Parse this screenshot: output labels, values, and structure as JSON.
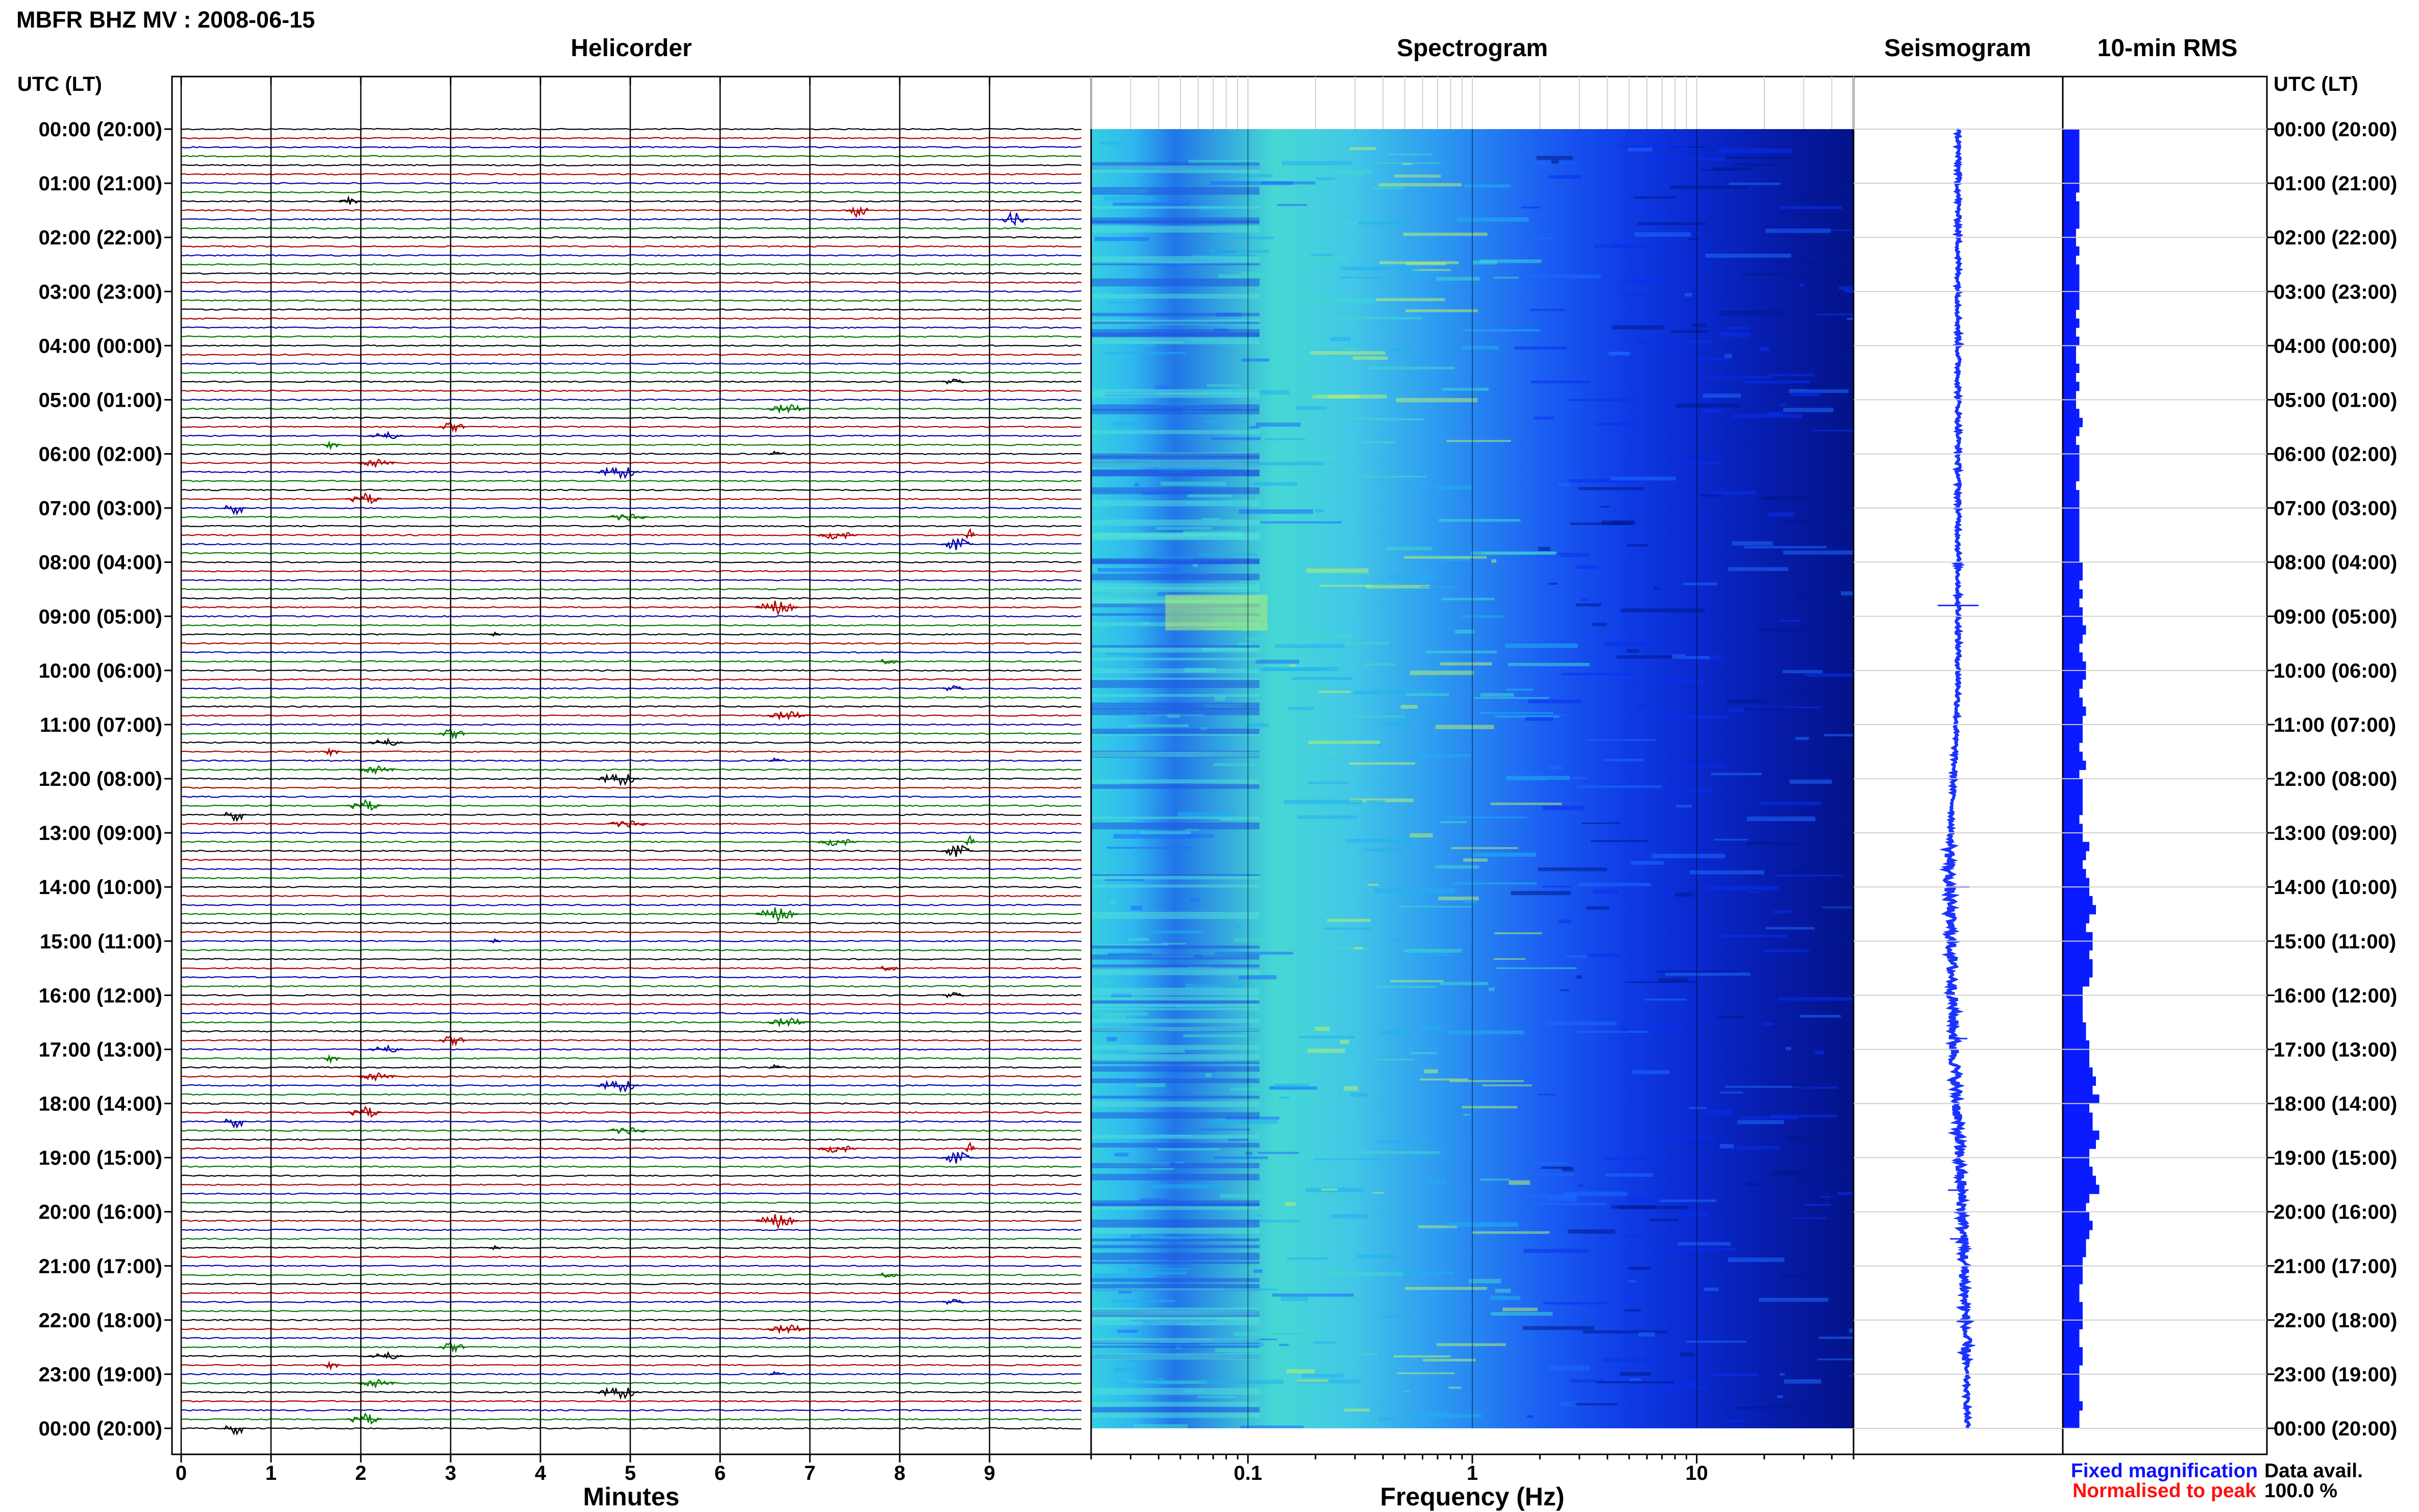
{
  "header": {
    "title": "MBFR BHZ MV : 2008-06-15"
  },
  "panels": {
    "helicorder": "Helicorder",
    "spectrogram": "Spectrogram",
    "seismogram": "Seismogram",
    "rms": "10-min RMS"
  },
  "time_axis": {
    "header_left": "UTC (LT)",
    "header_right": "UTC (LT)",
    "labels": [
      "00:00 (20:00)",
      "01:00 (21:00)",
      "02:00 (22:00)",
      "03:00 (23:00)",
      "04:00 (00:00)",
      "05:00 (01:00)",
      "06:00 (02:00)",
      "07:00 (03:00)",
      "08:00 (04:00)",
      "09:00 (05:00)",
      "10:00 (06:00)",
      "11:00 (07:00)",
      "12:00 (08:00)",
      "13:00 (09:00)",
      "14:00 (10:00)",
      "15:00 (11:00)",
      "16:00 (12:00)",
      "17:00 (13:00)",
      "18:00 (14:00)",
      "19:00 (15:00)",
      "20:00 (16:00)",
      "21:00 (17:00)",
      "22:00 (18:00)",
      "23:00 (19:00)",
      "00:00 (20:00)"
    ]
  },
  "helicorder_axis": {
    "xlabel": "Minutes",
    "ticks": [
      "0",
      "1",
      "2",
      "3",
      "4",
      "5",
      "6",
      "7",
      "8",
      "9"
    ]
  },
  "spectrogram_axis": {
    "xlabel": "Frequency (Hz)",
    "ticks": [
      "0.1",
      "1",
      "10"
    ],
    "scale": "log"
  },
  "legend": {
    "fixed": "Fixed magnification",
    "normalised": "Normalised to peak",
    "fixed_color": "#1010ff",
    "normalised_color": "#ff1010"
  },
  "data_avail": {
    "label": "Data avail.",
    "value": "100.0 %"
  },
  "colors": {
    "trace_cycle": [
      "#000000",
      "#b00000",
      "#0000b0",
      "#007a00"
    ],
    "seismogram": "#1a33ff",
    "rms": "#0a1cff",
    "spectrogram_scale": [
      "#001a8c",
      "#0a2ff0",
      "#1e6bff",
      "#1fb0f0",
      "#3fd8d0",
      "#b8f070"
    ]
  },
  "chart_data": {
    "type": "heatmap",
    "title": "MBFR BHZ MV : 2008-06-15",
    "helicorder": {
      "lines_per_hour": 6,
      "minutes_per_line": 10,
      "xlim": [
        0,
        10
      ]
    },
    "spectrogram": {
      "xlim_hz": [
        0.02,
        50
      ],
      "energy_peak_hz": [
        0.1,
        0.5
      ],
      "note_band_hz": [
        0.3,
        0.4
      ]
    },
    "seismogram": {
      "drift": [
        0,
        0,
        0,
        0,
        -0.5,
        -0.2,
        0.3,
        0.5
      ]
    },
    "rms_10min": [
      5,
      5,
      5,
      5,
      5,
      5,
      5,
      4,
      5,
      5,
      5,
      4,
      4,
      5,
      4,
      5,
      5,
      5,
      5,
      5,
      4,
      5,
      4,
      5,
      4,
      4,
      5,
      4,
      5,
      4,
      4,
      5,
      6,
      5,
      4,
      5,
      5,
      5,
      5,
      4,
      5,
      5,
      5,
      5,
      5,
      5,
      5,
      5,
      6,
      6,
      5,
      6,
      5,
      6,
      6,
      7,
      6,
      5,
      6,
      7,
      7,
      6,
      5,
      6,
      7,
      6,
      6,
      6,
      5,
      6,
      7,
      5,
      6,
      6,
      6,
      6,
      5,
      6,
      6,
      8,
      7,
      6,
      7,
      8,
      8,
      9,
      10,
      8,
      7,
      9,
      9,
      8,
      9,
      9,
      8,
      6,
      6,
      6,
      6,
      7,
      7,
      8,
      8,
      8,
      9,
      10,
      9,
      11,
      8,
      9,
      9,
      11,
      10,
      8,
      8,
      9,
      10,
      11,
      8,
      7,
      8,
      9,
      8,
      7,
      7,
      6,
      6,
      6,
      5,
      5,
      6,
      6,
      6,
      5,
      5,
      6,
      6,
      5,
      5,
      5,
      5,
      6,
      5,
      5
    ]
  }
}
